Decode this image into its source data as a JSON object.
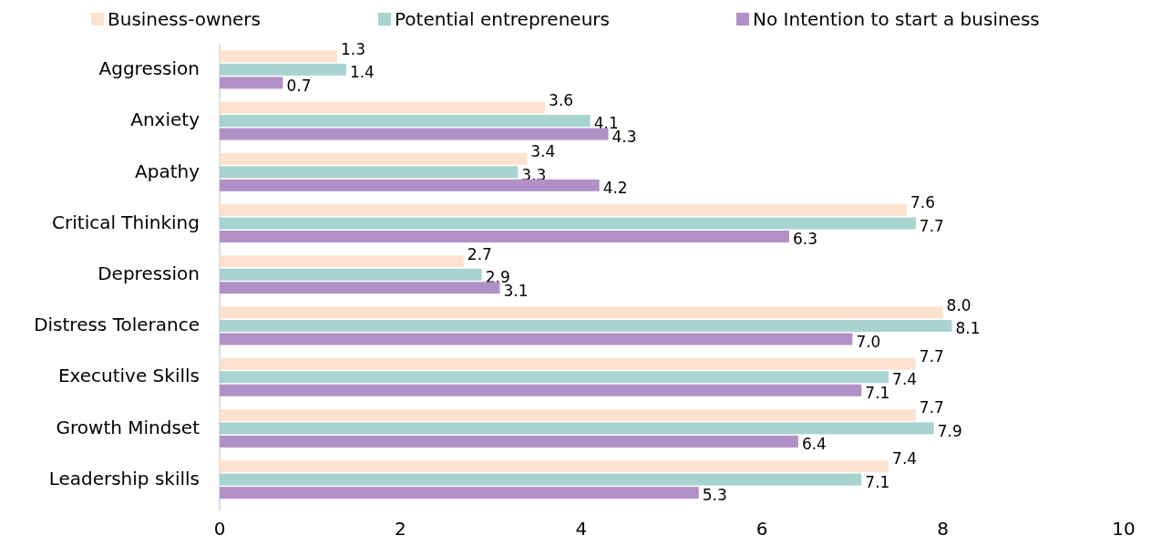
{
  "chart_data": {
    "type": "bar",
    "orientation": "horizontal",
    "categories": [
      "Aggression",
      "Anxiety",
      "Apathy",
      "Critical Thinking",
      "Depression",
      "Distress Tolerance",
      "Executive Skills",
      "Growth Mindset",
      "Leadership skills"
    ],
    "series": [
      {
        "name": "Business-owners",
        "color": "#fde3cf",
        "values": [
          1.3,
          3.6,
          3.4,
          7.6,
          2.7,
          8.0,
          7.7,
          7.7,
          7.4
        ],
        "value_labels": [
          "1.3",
          "3.6",
          "3.4",
          "7.6",
          "2.7",
          "8.0",
          "7.7",
          "7.7",
          "7.4"
        ]
      },
      {
        "name": "Potential entrepreneurs",
        "color": "#a7d3d1",
        "values": [
          1.4,
          4.1,
          3.3,
          7.7,
          2.9,
          8.1,
          7.4,
          7.9,
          7.1
        ],
        "value_labels": [
          "1.4",
          "4.1",
          "3.3",
          "7.7",
          "2.9",
          "8.1",
          "7.4",
          "7.9",
          "7.1"
        ]
      },
      {
        "name": "No Intention to start a business",
        "color": "#b190c8",
        "values": [
          0.7,
          4.3,
          4.2,
          6.3,
          3.1,
          7.0,
          7.1,
          6.4,
          5.3
        ],
        "value_labels": [
          "0.7",
          "4.3",
          "4.2",
          "6.3",
          "3.1",
          "7.0",
          "7.1",
          "6.4",
          "5.3"
        ]
      }
    ],
    "xlim": [
      0,
      10
    ],
    "xticks": [
      0,
      2,
      4,
      6,
      8,
      10
    ],
    "grid": false,
    "legend": "top"
  }
}
